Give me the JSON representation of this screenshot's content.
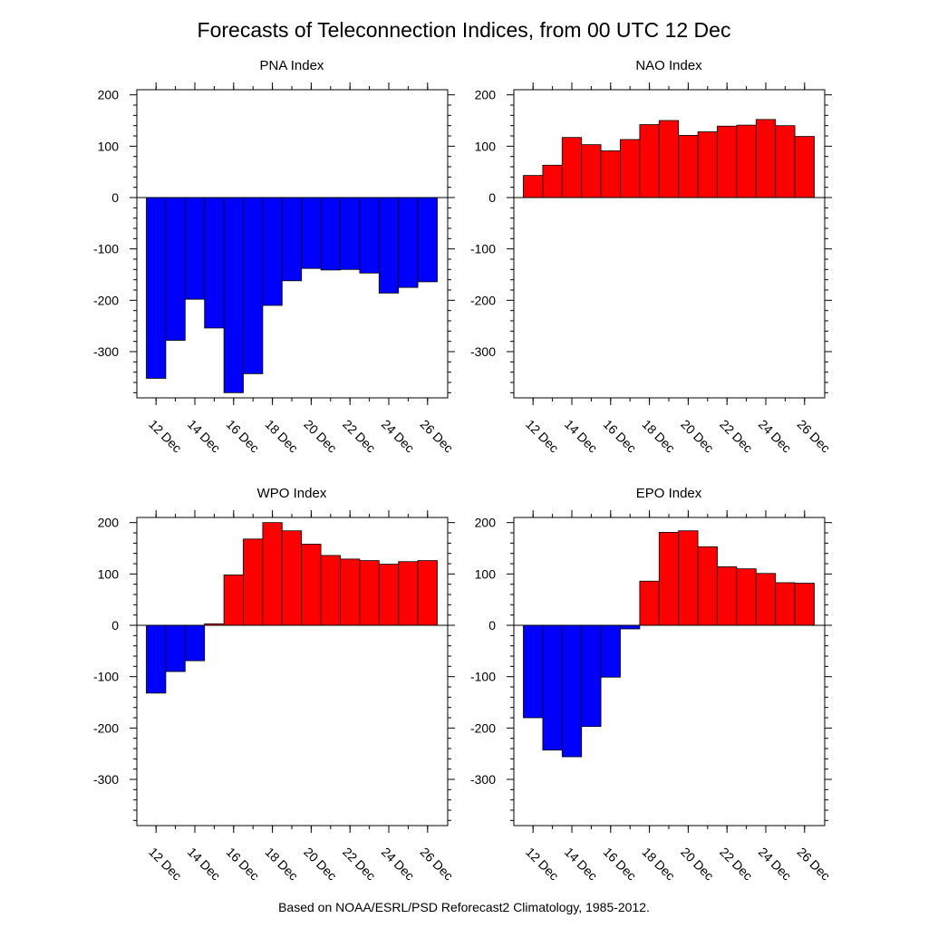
{
  "title": "Forecasts of Teleconnection Indices, from 00 UTC 12 Dec",
  "footer": "Based on NOAA/ESRL/PSD Reforecast2 Climatology, 1985-2012.",
  "colors": {
    "positive": "#ff0000",
    "negative": "#0000ff",
    "outline": "#000000"
  },
  "chart_data": [
    {
      "type": "bar",
      "title": "PNA Index",
      "categories": [
        "12 Dec",
        "13 Dec",
        "14 Dec",
        "15 Dec",
        "16 Dec",
        "17 Dec",
        "18 Dec",
        "19 Dec",
        "20 Dec",
        "21 Dec",
        "22 Dec",
        "23 Dec",
        "24 Dec",
        "25 Dec",
        "26 Dec"
      ],
      "values": [
        -352,
        -278,
        -198,
        -254,
        -380,
        -343,
        -210,
        -162,
        -138,
        -141,
        -140,
        -147,
        -186,
        -175,
        -164
      ],
      "ylim": [
        -390,
        210
      ],
      "yticks": [
        200,
        100,
        0,
        -100,
        -200,
        -300
      ],
      "xtick_labels": [
        "12 Dec",
        "14 Dec",
        "16 Dec",
        "18 Dec",
        "20 Dec",
        "22 Dec",
        "24 Dec",
        "26 Dec"
      ]
    },
    {
      "type": "bar",
      "title": "NAO Index",
      "categories": [
        "12 Dec",
        "13 Dec",
        "14 Dec",
        "15 Dec",
        "16 Dec",
        "17 Dec",
        "18 Dec",
        "19 Dec",
        "20 Dec",
        "21 Dec",
        "22 Dec",
        "23 Dec",
        "24 Dec",
        "25 Dec",
        "26 Dec"
      ],
      "values": [
        43,
        63,
        117,
        103,
        91,
        113,
        142,
        150,
        121,
        128,
        139,
        141,
        152,
        140,
        119
      ],
      "ylim": [
        -390,
        210
      ],
      "yticks": [
        200,
        100,
        0,
        -100,
        -200,
        -300
      ],
      "xtick_labels": [
        "12 Dec",
        "14 Dec",
        "16 Dec",
        "18 Dec",
        "20 Dec",
        "22 Dec",
        "24 Dec",
        "26 Dec"
      ]
    },
    {
      "type": "bar",
      "title": "WPO Index",
      "categories": [
        "12 Dec",
        "13 Dec",
        "14 Dec",
        "15 Dec",
        "16 Dec",
        "17 Dec",
        "18 Dec",
        "19 Dec",
        "20 Dec",
        "21 Dec",
        "22 Dec",
        "23 Dec",
        "24 Dec",
        "25 Dec",
        "26 Dec"
      ],
      "values": [
        -132,
        -90,
        -69,
        3,
        98,
        168,
        200,
        184,
        158,
        136,
        129,
        126,
        119,
        124,
        126
      ],
      "ylim": [
        -390,
        210
      ],
      "yticks": [
        200,
        100,
        0,
        -100,
        -200,
        -300
      ],
      "xtick_labels": [
        "12 Dec",
        "14 Dec",
        "16 Dec",
        "18 Dec",
        "20 Dec",
        "22 Dec",
        "24 Dec",
        "26 Dec"
      ]
    },
    {
      "type": "bar",
      "title": "EPO Index",
      "categories": [
        "12 Dec",
        "13 Dec",
        "14 Dec",
        "15 Dec",
        "16 Dec",
        "17 Dec",
        "18 Dec",
        "19 Dec",
        "20 Dec",
        "21 Dec",
        "22 Dec",
        "23 Dec",
        "24 Dec",
        "25 Dec",
        "26 Dec"
      ],
      "values": [
        -180,
        -243,
        -256,
        -197,
        -101,
        -7,
        86,
        181,
        184,
        153,
        114,
        110,
        101,
        83,
        82
      ],
      "ylim": [
        -390,
        210
      ],
      "yticks": [
        200,
        100,
        0,
        -100,
        -200,
        -300
      ],
      "xtick_labels": [
        "12 Dec",
        "14 Dec",
        "16 Dec",
        "18 Dec",
        "20 Dec",
        "22 Dec",
        "24 Dec",
        "26 Dec"
      ]
    }
  ]
}
